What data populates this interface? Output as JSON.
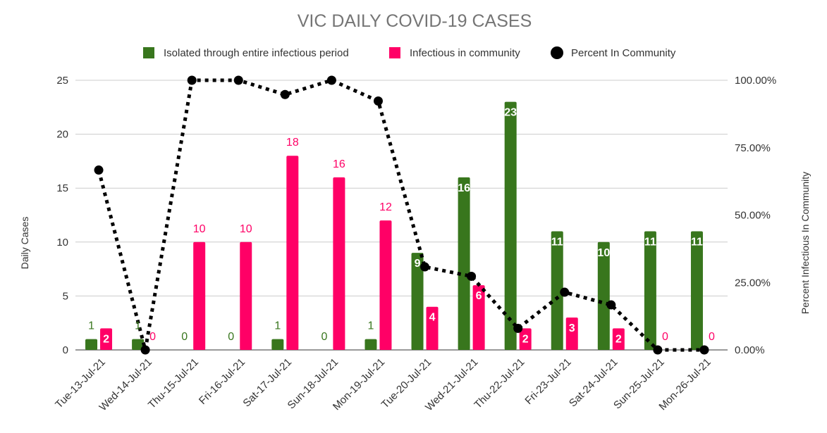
{
  "chart_data": {
    "type": "bar",
    "title": "VIC DAILY COVID-19 CASES",
    "xlabel": "",
    "ylabel": "Daily Cases",
    "y2label": "Percent Infectious In Community",
    "ylim": [
      0,
      25
    ],
    "y2lim": [
      0,
      100
    ],
    "yticks": [
      "0",
      "5",
      "10",
      "15",
      "20",
      "25"
    ],
    "y2ticks": [
      "0.00%",
      "25.00%",
      "50.00%",
      "75.00%",
      "100.00%"
    ],
    "grid": true,
    "legend_position": "top",
    "categories": [
      "Tue-13-Jul-21",
      "Wed-14-Jul-21",
      "Thu-15-Jul-21",
      "Fri-16-Jul-21",
      "Sat-17-Jul-21",
      "Sun-18-Jul-21",
      "Mon-19-Jul-21",
      "Tue-20-Jul-21",
      "Wed-21-Jul-21",
      "Thu-22-Jul-21",
      "Fri-23-Jul-21",
      "Sat-24-Jul-21",
      "Sun-25-Jul-21",
      "Mon-26-Jul-21"
    ],
    "series": [
      {
        "name": "Isolated through entire infectious period",
        "kind": "bar",
        "color": "#38761d",
        "values": [
          1,
          1,
          0,
          0,
          1,
          0,
          1,
          9,
          16,
          23,
          11,
          10,
          11,
          11
        ],
        "labels": [
          "1",
          "1",
          "0",
          "0",
          "1",
          "0",
          "1",
          "9",
          "16",
          "23",
          "11",
          "10",
          "11",
          "11"
        ]
      },
      {
        "name": "Infectious in community",
        "kind": "bar",
        "color": "#ff0066",
        "values": [
          2,
          0,
          10,
          10,
          18,
          16,
          12,
          4,
          6,
          2,
          3,
          2,
          0,
          0
        ],
        "labels": [
          "2",
          "0",
          "10",
          "10",
          "18",
          "16",
          "12",
          "4",
          "6",
          "2",
          "3",
          "2",
          "0",
          "0"
        ]
      },
      {
        "name": "Percent In Community",
        "kind": "line",
        "axis": "right",
        "color": "#000000",
        "style": "dotted",
        "values": [
          66.7,
          0,
          100,
          100,
          94.7,
          100,
          92.3,
          30.8,
          27.3,
          8,
          21.4,
          16.7,
          0,
          0
        ]
      }
    ]
  }
}
